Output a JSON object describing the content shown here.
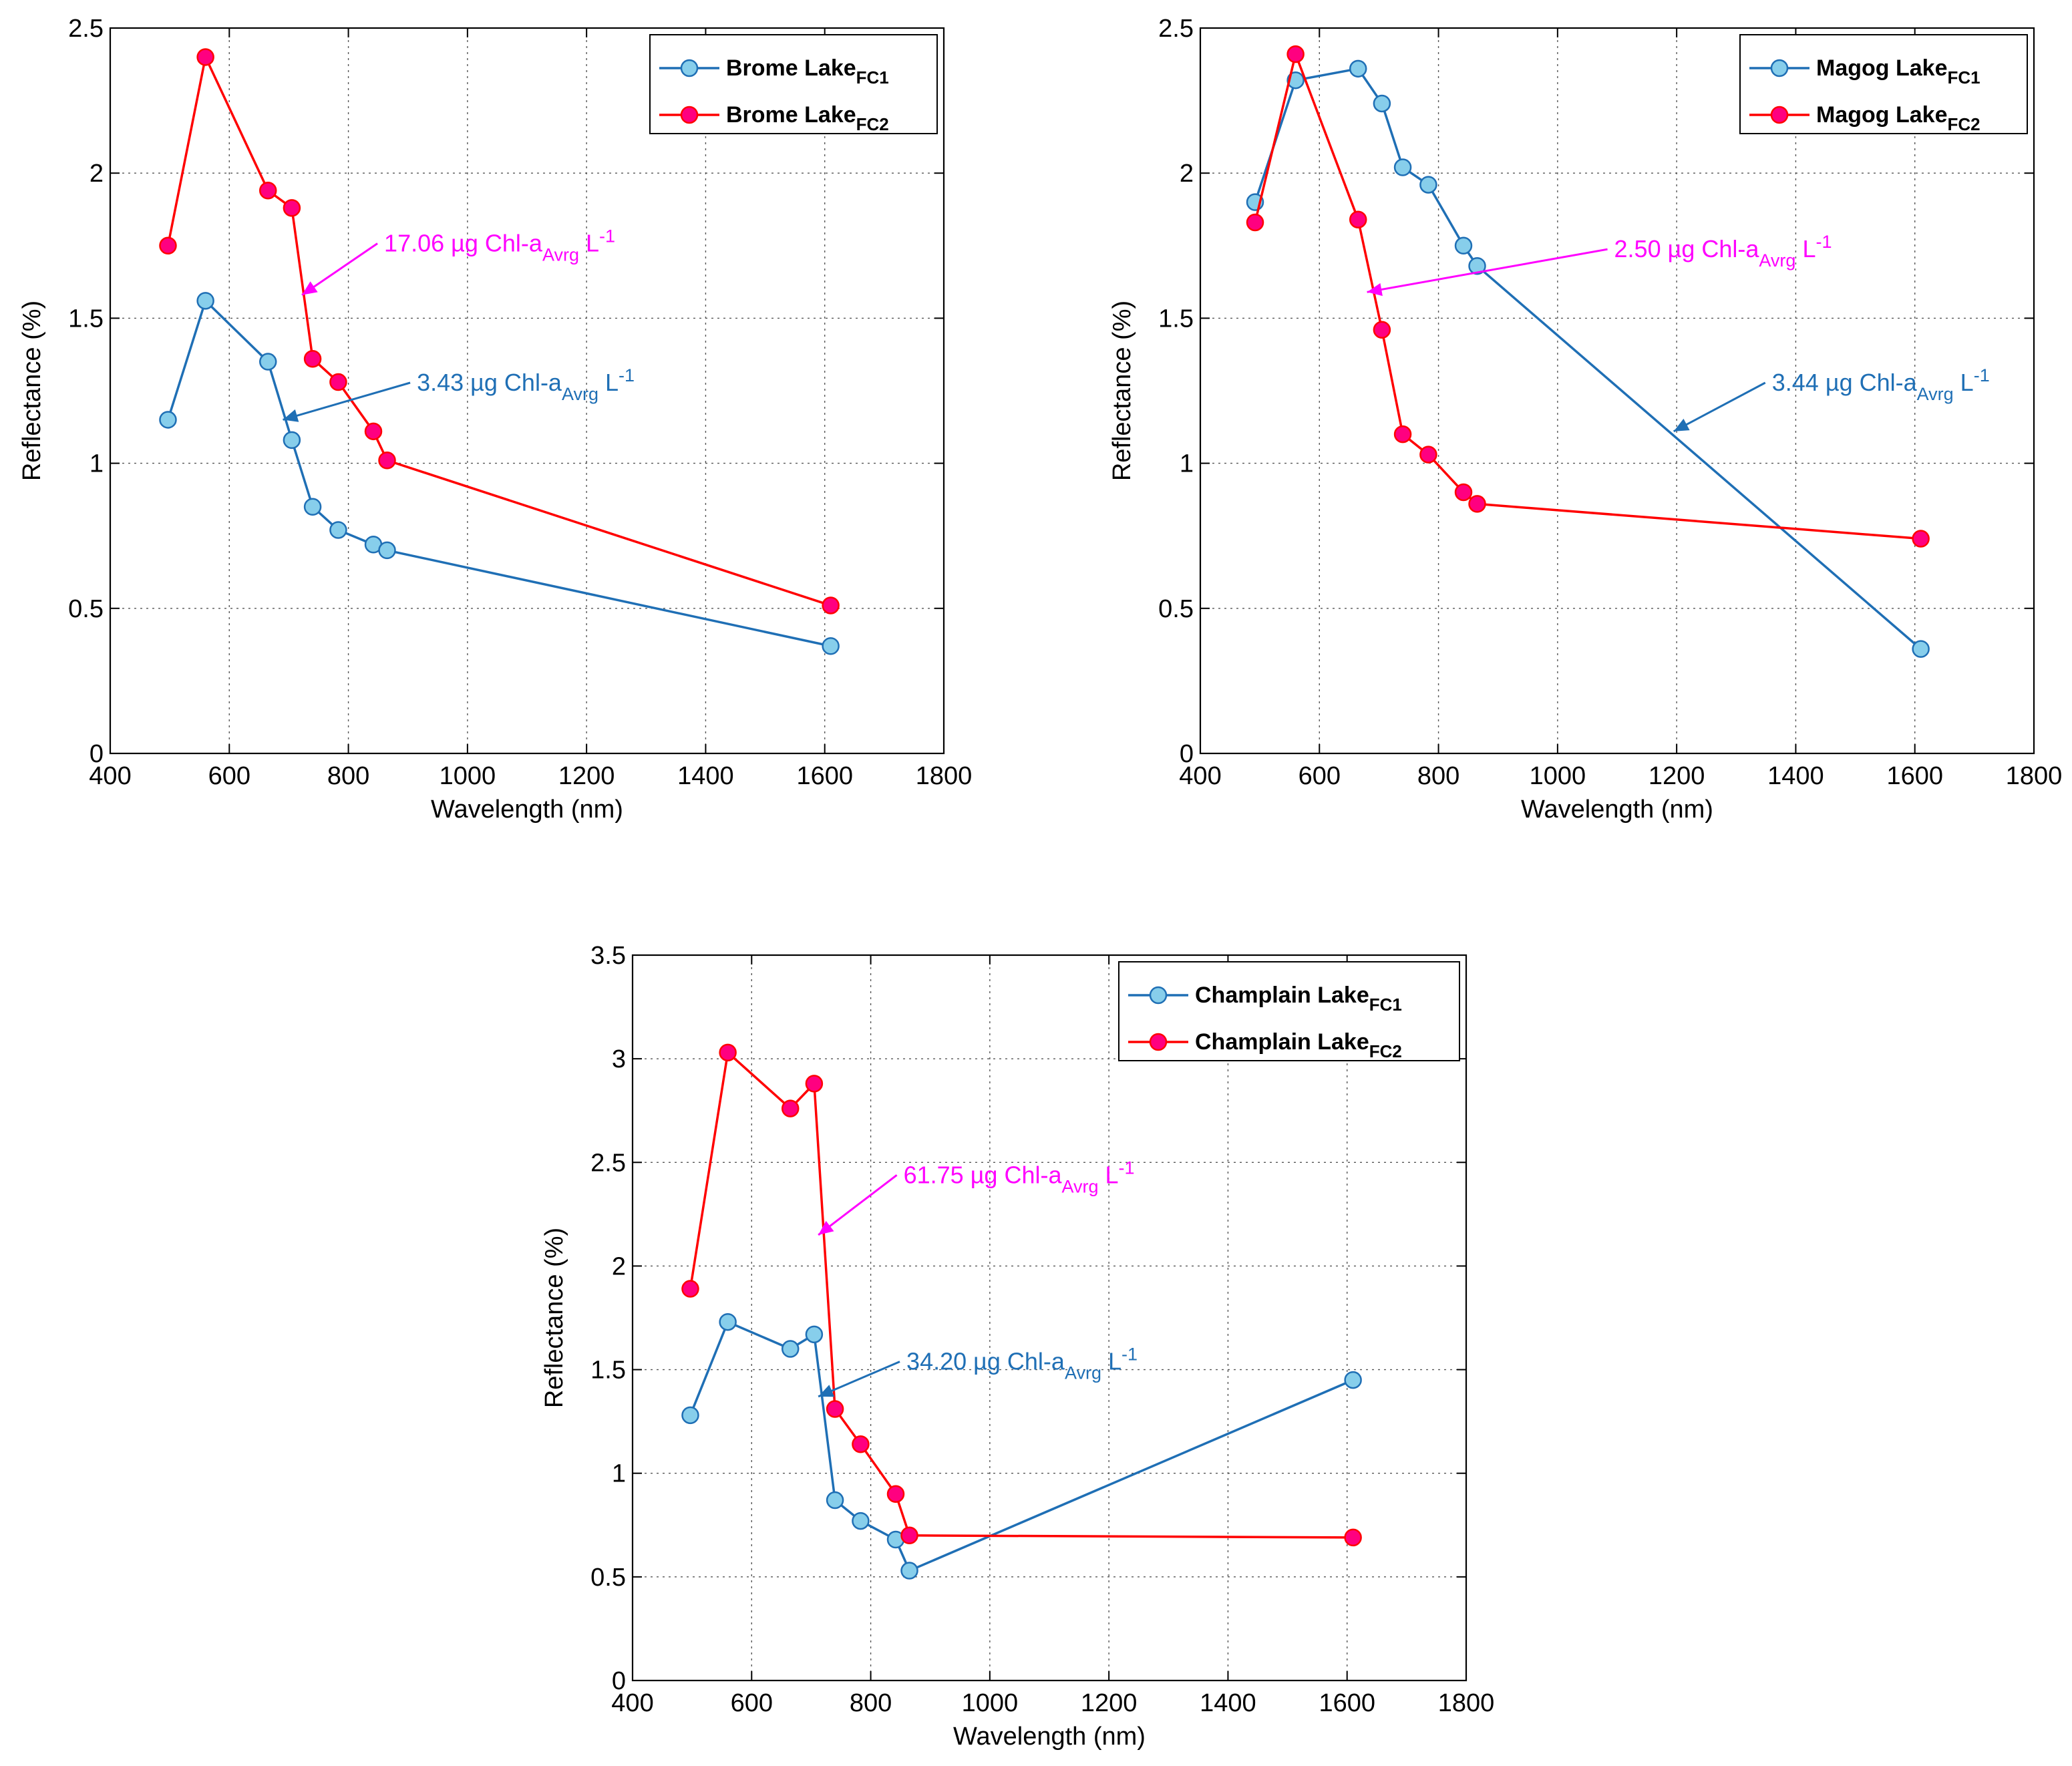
{
  "chart_data": [
    {
      "id": "brome",
      "type": "line",
      "xlabel": "Wavelength (nm)",
      "ylabel": "Reflectance (%)",
      "xlim": [
        400,
        1800
      ],
      "ylim": [
        0,
        2.5
      ],
      "xticks": [
        "400",
        "600",
        "800",
        "1000",
        "1200",
        "1400",
        "1600",
        "1800"
      ],
      "yticks": [
        "0",
        "0.5",
        "1",
        "1.5",
        "2",
        "2.5"
      ],
      "grid": true,
      "legend_position": "top-right",
      "series": [
        {
          "name": "Brome Lake",
          "subscript": "FC1",
          "line_color": "#1f6fb5",
          "marker_color": "#87ceeb",
          "x": [
            497,
            560,
            665,
            705,
            740,
            783,
            842,
            865,
            1610
          ],
          "y": [
            1.15,
            1.56,
            1.35,
            1.08,
            0.85,
            0.77,
            0.72,
            0.7,
            0.37
          ]
        },
        {
          "name": "Brome Lake",
          "subscript": "FC2",
          "line_color": "#ff0000",
          "marker_color": "#ff0080",
          "x": [
            497,
            560,
            665,
            705,
            740,
            783,
            842,
            865,
            1610
          ],
          "y": [
            1.75,
            2.4,
            1.94,
            1.88,
            1.36,
            1.28,
            1.11,
            1.01,
            0.51
          ]
        }
      ],
      "annotations": [
        {
          "value": "17.06",
          "unit": "µg Chl-a",
          "sub": "Avrg",
          "tail": "L",
          "sup": "-1",
          "color": "#ff00ff",
          "target": [
            722,
            1.58
          ],
          "text_at": [
            860,
            1.73
          ]
        },
        {
          "value": "3.43",
          "unit": "µg Chl-a",
          "sub": "Avrg",
          "tail": "L",
          "sup": "-1",
          "color": "#1f6fb5",
          "target": [
            690,
            1.15
          ],
          "text_at": [
            915,
            1.25
          ]
        }
      ]
    },
    {
      "id": "magog",
      "type": "line",
      "xlabel": "Wavelength (nm)",
      "ylabel": "Reflectance (%)",
      "xlim": [
        400,
        1800
      ],
      "ylim": [
        0,
        2.5
      ],
      "xticks": [
        "400",
        "600",
        "800",
        "1000",
        "1200",
        "1400",
        "1600",
        "1800"
      ],
      "yticks": [
        "0",
        "0.5",
        "1",
        "1.5",
        "2",
        "2.5"
      ],
      "grid": true,
      "legend_position": "top-right",
      "series": [
        {
          "name": "Magog Lake",
          "subscript": "FC1",
          "line_color": "#1f6fb5",
          "marker_color": "#87ceeb",
          "x": [
            492,
            560,
            665,
            705,
            740,
            783,
            842,
            865,
            1610
          ],
          "y": [
            1.9,
            2.32,
            2.36,
            2.24,
            2.02,
            1.96,
            1.75,
            1.68,
            0.36
          ]
        },
        {
          "name": "Magog Lake",
          "subscript": "FC2",
          "line_color": "#ff0000",
          "marker_color": "#ff0080",
          "x": [
            492,
            560,
            665,
            705,
            740,
            783,
            842,
            865,
            1610
          ],
          "y": [
            1.83,
            2.41,
            1.84,
            1.46,
            1.1,
            1.03,
            0.9,
            0.86,
            0.74
          ]
        }
      ],
      "annotations": [
        {
          "value": "2.50",
          "unit": "µg Chl-a",
          "sub": "Avrg",
          "tail": "L",
          "sup": "-1",
          "color": "#ff00ff",
          "target": [
            680,
            1.59
          ],
          "text_at": [
            1095,
            1.71
          ]
        },
        {
          "value": "3.44",
          "unit": "µg Chl-a",
          "sub": "Avrg",
          "tail": "L",
          "sup": "-1",
          "color": "#1f6fb5",
          "target": [
            1195,
            1.11
          ],
          "text_at": [
            1360,
            1.25
          ]
        }
      ]
    },
    {
      "id": "champlain",
      "type": "line",
      "xlabel": "Wavelength (nm)",
      "ylabel": "Reflectance (%)",
      "xlim": [
        400,
        1800
      ],
      "ylim": [
        0,
        3.5
      ],
      "xticks": [
        "400",
        "600",
        "800",
        "1000",
        "1200",
        "1400",
        "1600",
        "1800"
      ],
      "yticks": [
        "0",
        "0.5",
        "1",
        "1.5",
        "2",
        "2.5",
        "3",
        "3.5"
      ],
      "grid": true,
      "legend_position": "top-right",
      "series": [
        {
          "name": "Champlain Lake",
          "subscript": "FC1",
          "line_color": "#1f6fb5",
          "marker_color": "#87ceeb",
          "x": [
            497,
            560,
            665,
            705,
            740,
            783,
            842,
            865,
            1610
          ],
          "y": [
            1.28,
            1.73,
            1.6,
            1.67,
            0.87,
            0.77,
            0.68,
            0.53,
            1.45
          ]
        },
        {
          "name": "Champlain Lake",
          "subscript": "FC2",
          "line_color": "#ff0000",
          "marker_color": "#ff0080",
          "x": [
            497,
            560,
            665,
            705,
            740,
            783,
            842,
            865,
            1610
          ],
          "y": [
            1.89,
            3.03,
            2.76,
            2.88,
            1.31,
            1.14,
            0.9,
            0.7,
            0.69
          ]
        }
      ],
      "annotations": [
        {
          "value": "61.75",
          "unit": "µg Chl-a",
          "sub": "Avrg",
          "tail": "L",
          "sup": "-1",
          "color": "#ff00ff",
          "target": [
            712,
            2.15
          ],
          "text_at": [
            855,
            2.4
          ]
        },
        {
          "value": "34.20",
          "unit": "µg Chl-a",
          "sub": "Avrg",
          "tail": "L",
          "sup": "-1",
          "color": "#1f6fb5",
          "target": [
            712,
            1.37
          ],
          "text_at": [
            860,
            1.5
          ]
        }
      ]
    }
  ]
}
